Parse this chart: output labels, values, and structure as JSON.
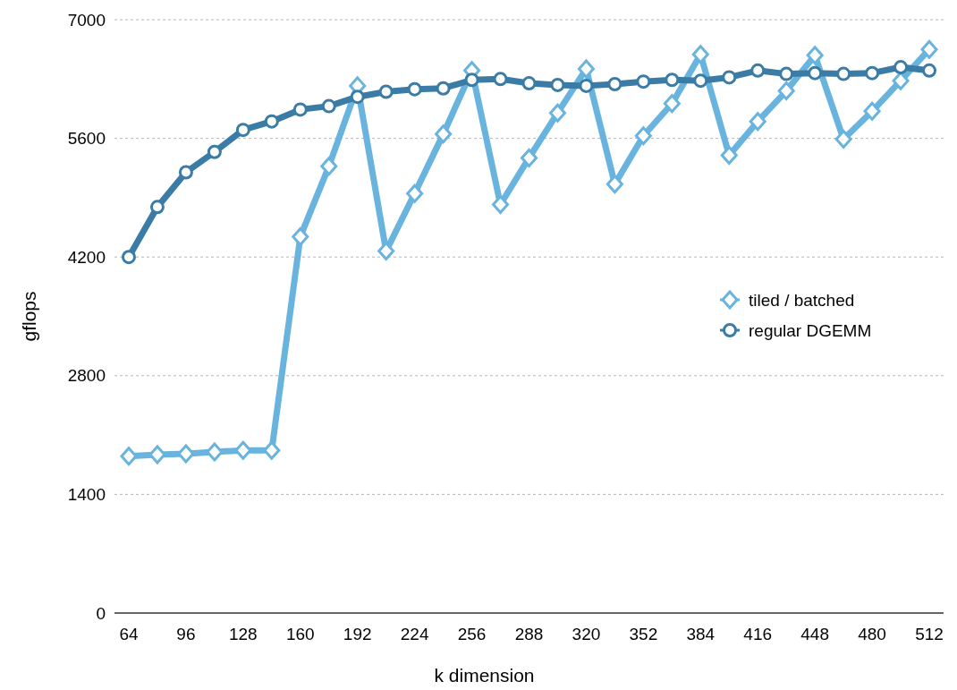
{
  "chart_data": {
    "type": "line",
    "xlabel": "k dimension",
    "ylabel": "gflops",
    "x": [
      64,
      80,
      96,
      112,
      128,
      144,
      160,
      176,
      192,
      208,
      224,
      240,
      256,
      272,
      288,
      304,
      320,
      336,
      352,
      368,
      384,
      400,
      416,
      432,
      448,
      464,
      480,
      496,
      512
    ],
    "xlim": [
      56,
      520
    ],
    "xticks": [
      64,
      96,
      128,
      160,
      192,
      224,
      256,
      288,
      320,
      352,
      384,
      416,
      448,
      480,
      512
    ],
    "ylim": [
      0,
      7000
    ],
    "yticks": [
      0,
      1400,
      2800,
      4200,
      5600,
      7000
    ],
    "grid": "y",
    "legend": "right",
    "line_style": "solid",
    "series": [
      {
        "name": "tiled / batched",
        "color": "#69b3df",
        "marker": "diamond",
        "values": [
          1850,
          1870,
          1880,
          1900,
          1920,
          1920,
          4440,
          5270,
          6220,
          4270,
          4950,
          5650,
          6400,
          4820,
          5370,
          5900,
          6420,
          5060,
          5630,
          6010,
          6590,
          5400,
          5800,
          6160,
          6580,
          5590,
          5920,
          6280,
          6650
        ]
      },
      {
        "name": "regular DGEMM",
        "color": "#3a7ca5",
        "marker": "circle",
        "values": [
          4200,
          4790,
          5200,
          5440,
          5700,
          5800,
          5940,
          5980,
          6090,
          6150,
          6180,
          6190,
          6290,
          6300,
          6250,
          6230,
          6220,
          6240,
          6270,
          6290,
          6280,
          6320,
          6400,
          6360,
          6370,
          6360,
          6370,
          6440,
          6400
        ]
      }
    ]
  }
}
